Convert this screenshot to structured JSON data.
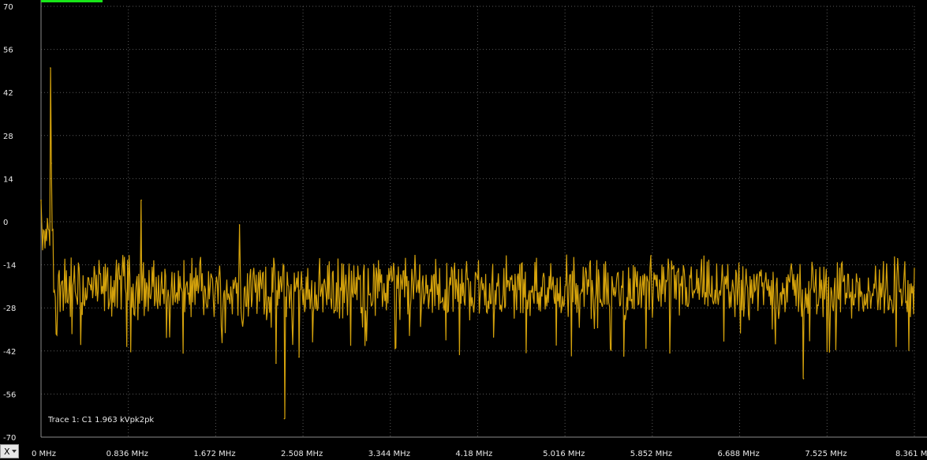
{
  "colors": {
    "background": "#000000",
    "grid": "#5a5a5a",
    "trace": "#d4a20c",
    "indicator": "#19e619",
    "text": "#e8e8e8"
  },
  "axis_selector": {
    "label": "X",
    "icon": "chevron-down-icon"
  },
  "trace_label": "Trace 1: C1 1.963 kVpk2pk",
  "chart_data": {
    "type": "line",
    "ylim": [
      -70,
      70
    ],
    "xlim": [
      0,
      8.361
    ],
    "x_unit": "MHz",
    "grid": true,
    "y_ticks": [
      70,
      56,
      42,
      28,
      14,
      0,
      -14,
      -28,
      -42,
      -56,
      -70
    ],
    "y_tick_labels": [
      "70",
      "56",
      "42",
      "28",
      "14",
      "0",
      "-14",
      "-28",
      "-42",
      "-56",
      "-70"
    ],
    "x_ticks": [
      0,
      0.836,
      1.672,
      2.508,
      3.344,
      4.18,
      5.016,
      5.852,
      6.688,
      7.525,
      8.361
    ],
    "x_tick_labels": [
      "0 MHz",
      "0.836 MHz",
      "1.672 MHz",
      "2.508 MHz",
      "3.344 MHz",
      "4.18 MHz",
      "5.016 MHz",
      "5.852 MHz",
      "6.688 MHz",
      "7.525 MHz",
      "8.361 M"
    ],
    "series": [
      {
        "noise_floor": -22,
        "peaks": [
          {
            "x": 0.0,
            "y": 7
          },
          {
            "x": 0.06,
            "y": 1
          },
          {
            "x": 0.09,
            "y": 50
          },
          {
            "x": 0.1,
            "y": 19
          },
          {
            "x": 0.96,
            "y": 7
          },
          {
            "x": 1.9,
            "y": -1
          },
          {
            "x": 2.25,
            "y": -46
          },
          {
            "x": 2.33,
            "y": -64
          },
          {
            "x": 2.47,
            "y": -44
          },
          {
            "x": 5.84,
            "y": -11
          },
          {
            "x": 7.3,
            "y": -51
          },
          {
            "x": 8.2,
            "y": -12
          }
        ]
      }
    ]
  }
}
